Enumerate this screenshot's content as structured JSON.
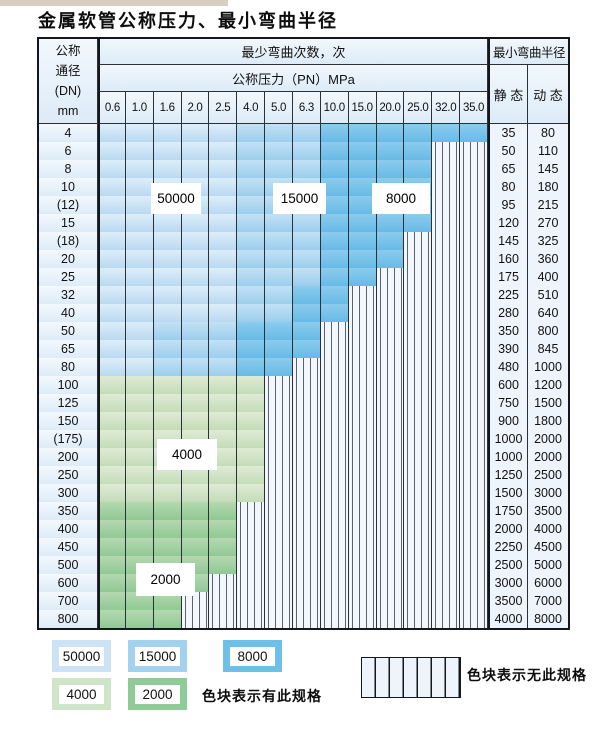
{
  "title": "金属软管公称压力、最小弯曲半径",
  "table": {
    "dn_header_lines": [
      "公称",
      "通径",
      "(DN)",
      "mm"
    ],
    "bend_cycles_header": "最少弯曲次数，次",
    "pressure_header": "公称压力（PN）MPa",
    "radius_header": "最小弯曲半径",
    "static_header": "静 态",
    "dynamic_header": "动 态",
    "pressure_columns": [
      "0.6",
      "1.0",
      "1.6",
      "2.0",
      "2.5",
      "4.0",
      "5.0",
      "6.3",
      "10.0",
      "15.0",
      "20.0",
      "25.0",
      "32.0",
      "35.0"
    ],
    "zone_labels": [
      {
        "text": "50000"
      },
      {
        "text": "15000"
      },
      {
        "text": "8000"
      },
      {
        "text": "4000"
      },
      {
        "text": "2000"
      }
    ],
    "rows": [
      {
        "dn": "4",
        "static": "35",
        "dynamic": "80",
        "type": "b",
        "band": [
          4,
          7,
          13
        ]
      },
      {
        "dn": "6",
        "static": "50",
        "dynamic": "110",
        "type": "b",
        "band": [
          4,
          7,
          11
        ]
      },
      {
        "dn": "8",
        "static": "65",
        "dynamic": "145",
        "type": "b",
        "band": [
          4,
          7,
          11
        ]
      },
      {
        "dn": "10",
        "static": "80",
        "dynamic": "180",
        "type": "b",
        "band": [
          4,
          7,
          11
        ]
      },
      {
        "dn": "(12)",
        "static": "95",
        "dynamic": "215",
        "type": "b",
        "band": [
          4,
          7,
          11
        ]
      },
      {
        "dn": "15",
        "static": "120",
        "dynamic": "270",
        "type": "b",
        "band": [
          4,
          7,
          11
        ]
      },
      {
        "dn": "(18)",
        "static": "145",
        "dynamic": "325",
        "type": "b",
        "band": [
          4,
          7,
          10
        ]
      },
      {
        "dn": "20",
        "static": "160",
        "dynamic": "360",
        "type": "b",
        "band": [
          4,
          7,
          10
        ]
      },
      {
        "dn": "25",
        "static": "175",
        "dynamic": "400",
        "type": "b",
        "band": [
          4,
          7,
          9
        ]
      },
      {
        "dn": "32",
        "static": "225",
        "dynamic": "510",
        "type": "b",
        "band": [
          4,
          6,
          8
        ]
      },
      {
        "dn": "40",
        "static": "280",
        "dynamic": "640",
        "type": "b",
        "band": [
          4,
          6,
          8
        ]
      },
      {
        "dn": "50",
        "static": "350",
        "dynamic": "800",
        "type": "b",
        "band": [
          1,
          4,
          7
        ]
      },
      {
        "dn": "65",
        "static": "390",
        "dynamic": "845",
        "type": "b",
        "band": [
          1,
          4,
          7
        ]
      },
      {
        "dn": "80",
        "static": "480",
        "dynamic": "1000",
        "type": "b",
        "band": [
          1,
          4,
          6
        ]
      },
      {
        "dn": "100",
        "static": "600",
        "dynamic": "1200",
        "type": "g1",
        "band": [
          5
        ]
      },
      {
        "dn": "125",
        "static": "750",
        "dynamic": "1500",
        "type": "g1",
        "band": [
          5
        ]
      },
      {
        "dn": "150",
        "static": "900",
        "dynamic": "1800",
        "type": "g1",
        "band": [
          5
        ]
      },
      {
        "dn": "(175)",
        "static": "1000",
        "dynamic": "2000",
        "type": "g1",
        "band": [
          5
        ]
      },
      {
        "dn": "200",
        "static": "1000",
        "dynamic": "2000",
        "type": "g1",
        "band": [
          5
        ]
      },
      {
        "dn": "250",
        "static": "1250",
        "dynamic": "2500",
        "type": "g1",
        "band": [
          5
        ]
      },
      {
        "dn": "300",
        "static": "1500",
        "dynamic": "3000",
        "type": "g1",
        "band": [
          5
        ]
      },
      {
        "dn": "350",
        "static": "1750",
        "dynamic": "3500",
        "type": "g2",
        "band": [
          4
        ]
      },
      {
        "dn": "400",
        "static": "2000",
        "dynamic": "4000",
        "type": "g2",
        "band": [
          4
        ]
      },
      {
        "dn": "450",
        "static": "2250",
        "dynamic": "4500",
        "type": "g2",
        "band": [
          4
        ]
      },
      {
        "dn": "500",
        "static": "2500",
        "dynamic": "5000",
        "type": "g2",
        "band": [
          4
        ]
      },
      {
        "dn": "600",
        "static": "3000",
        "dynamic": "6000",
        "type": "g2",
        "band": [
          3
        ]
      },
      {
        "dn": "700",
        "static": "3500",
        "dynamic": "7000",
        "type": "g2",
        "band": [
          2
        ]
      },
      {
        "dn": "800",
        "static": "4000",
        "dynamic": "8000",
        "type": "g2",
        "band": [
          2
        ]
      }
    ]
  },
  "legend": {
    "swatches": [
      {
        "label": "50000",
        "color": "#cbe3f5"
      },
      {
        "label": "15000",
        "color": "#a3d2ee"
      },
      {
        "label": "8000",
        "color": "#6fc0e8"
      },
      {
        "label": "4000",
        "color": "#cfe5c8"
      },
      {
        "label": "2000",
        "color": "#8fcb96"
      }
    ],
    "has_spec_text": "色块表示有此规格",
    "no_spec_text": "色块表示无此规格"
  },
  "colors": {
    "zone_50000": "#cbe3f5",
    "zone_15000": "#a3d2ee",
    "zone_8000": "#6fc0e8",
    "zone_4000": "#cfe5c8",
    "zone_2000": "#8fcb96",
    "grid_line": "#2b3138",
    "header_bg": "#ddebf7",
    "top_strip": "#d6cfc0"
  }
}
